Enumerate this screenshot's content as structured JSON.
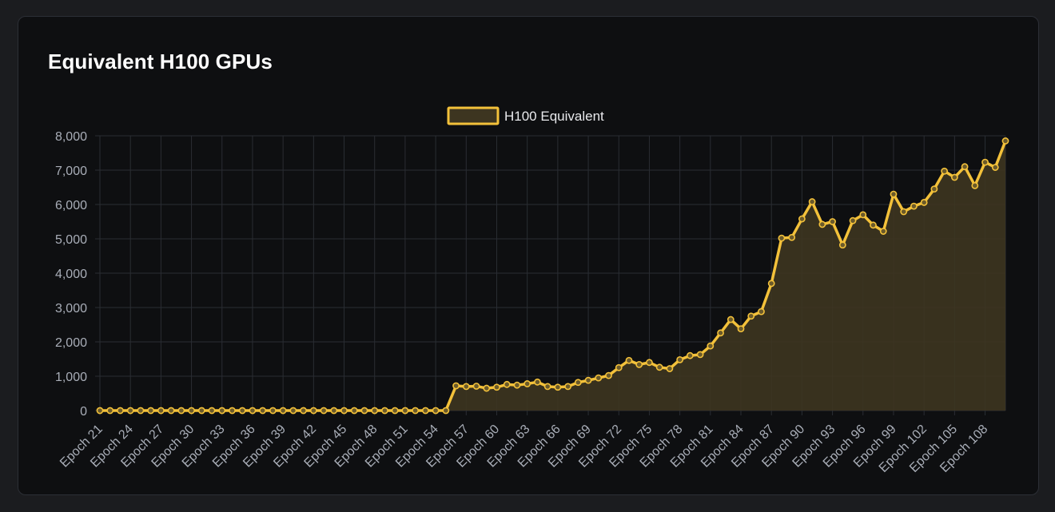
{
  "card": {
    "title": "Equivalent H100 GPUs"
  },
  "colors": {
    "line": "#f3c13a",
    "fill": "#3d3520",
    "point_fill": "#6b5a2a",
    "grid": "#2a2d33",
    "tick": "#a9aeb8",
    "card_bg": "#0e0f11"
  },
  "chart_data": {
    "type": "area",
    "title": "Equivalent H100 GPUs",
    "xlabel": "",
    "ylabel": "",
    "ylim": [
      0,
      8000
    ],
    "yticks": [
      0,
      1000,
      2000,
      3000,
      4000,
      5000,
      6000,
      7000,
      8000
    ],
    "ytick_labels": [
      "0",
      "1,000",
      "2,000",
      "3,000",
      "4,000",
      "5,000",
      "6,000",
      "7,000",
      "8,000"
    ],
    "xtick_labels": [
      "Epoch 21",
      "Epoch 24",
      "Epoch 27",
      "Epoch 30",
      "Epoch 33",
      "Epoch 36",
      "Epoch 39",
      "Epoch 42",
      "Epoch 45",
      "Epoch 48",
      "Epoch 51",
      "Epoch 54",
      "Epoch 57",
      "Epoch 60",
      "Epoch 63",
      "Epoch 66",
      "Epoch 69",
      "Epoch 72",
      "Epoch 75",
      "Epoch 78",
      "Epoch 81",
      "Epoch 84",
      "Epoch 87",
      "Epoch 90",
      "Epoch 93",
      "Epoch 96",
      "Epoch 99",
      "Epoch 102",
      "Epoch 105",
      "Epoch 108"
    ],
    "grid": true,
    "legend_position": "top-center",
    "series": [
      {
        "name": "H100 Equivalent",
        "x": [
          "Epoch 21",
          "Epoch 22",
          "Epoch 23",
          "Epoch 24",
          "Epoch 25",
          "Epoch 26",
          "Epoch 27",
          "Epoch 28",
          "Epoch 29",
          "Epoch 30",
          "Epoch 31",
          "Epoch 32",
          "Epoch 33",
          "Epoch 34",
          "Epoch 35",
          "Epoch 36",
          "Epoch 37",
          "Epoch 38",
          "Epoch 39",
          "Epoch 40",
          "Epoch 41",
          "Epoch 42",
          "Epoch 43",
          "Epoch 44",
          "Epoch 45",
          "Epoch 46",
          "Epoch 47",
          "Epoch 48",
          "Epoch 49",
          "Epoch 50",
          "Epoch 51",
          "Epoch 52",
          "Epoch 53",
          "Epoch 54",
          "Epoch 55",
          "Epoch 56",
          "Epoch 57",
          "Epoch 58",
          "Epoch 59",
          "Epoch 60",
          "Epoch 61",
          "Epoch 62",
          "Epoch 63",
          "Epoch 64",
          "Epoch 65",
          "Epoch 66",
          "Epoch 67",
          "Epoch 68",
          "Epoch 69",
          "Epoch 70",
          "Epoch 71",
          "Epoch 72",
          "Epoch 73",
          "Epoch 74",
          "Epoch 75",
          "Epoch 76",
          "Epoch 77",
          "Epoch 78",
          "Epoch 79",
          "Epoch 80",
          "Epoch 81",
          "Epoch 82",
          "Epoch 83",
          "Epoch 84",
          "Epoch 85",
          "Epoch 86",
          "Epoch 87",
          "Epoch 88",
          "Epoch 89",
          "Epoch 90",
          "Epoch 91",
          "Epoch 92",
          "Epoch 93",
          "Epoch 94",
          "Epoch 95",
          "Epoch 96",
          "Epoch 97",
          "Epoch 98",
          "Epoch 99",
          "Epoch 100",
          "Epoch 101",
          "Epoch 102",
          "Epoch 103",
          "Epoch 104",
          "Epoch 105",
          "Epoch 106",
          "Epoch 107",
          "Epoch 108",
          "Epoch 109",
          "Epoch 110"
        ],
        "values": [
          0,
          0,
          0,
          0,
          0,
          0,
          0,
          0,
          0,
          0,
          0,
          0,
          0,
          0,
          0,
          0,
          0,
          0,
          0,
          0,
          0,
          0,
          0,
          0,
          0,
          0,
          0,
          0,
          0,
          0,
          0,
          0,
          0,
          0,
          0,
          720,
          700,
          710,
          650,
          680,
          760,
          740,
          780,
          830,
          700,
          680,
          700,
          820,
          880,
          950,
          1020,
          1250,
          1460,
          1340,
          1400,
          1260,
          1220,
          1480,
          1600,
          1630,
          1880,
          2260,
          2650,
          2380,
          2750,
          2880,
          3700,
          5020,
          5040,
          5580,
          6080,
          5420,
          5500,
          4820,
          5530,
          5700,
          5400,
          5220,
          6300,
          5790,
          5950,
          6060,
          6450,
          6970,
          6790,
          7100,
          6550,
          7230,
          7080,
          7850
        ]
      }
    ]
  }
}
